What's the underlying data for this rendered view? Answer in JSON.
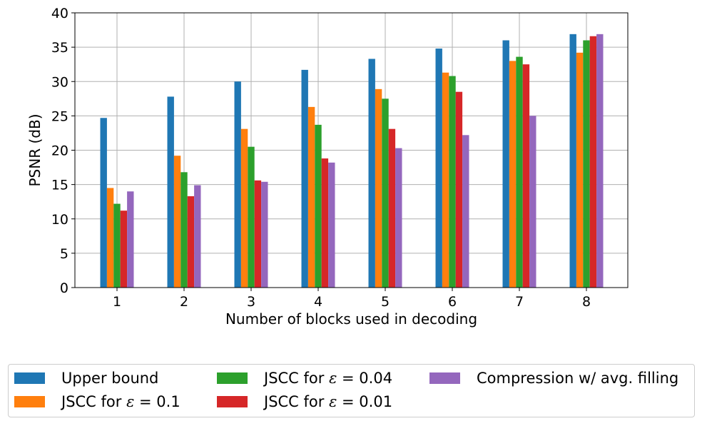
{
  "chart_data": {
    "type": "bar",
    "xlabel": "Number of blocks used in decoding",
    "ylabel": "PSNR (dB)",
    "ylim": [
      0,
      40
    ],
    "yticks": [
      0,
      5,
      10,
      15,
      20,
      25,
      30,
      35,
      40
    ],
    "categories": [
      "1",
      "2",
      "3",
      "4",
      "5",
      "6",
      "7",
      "8"
    ],
    "grid": true,
    "legend_position": "bottom",
    "series": [
      {
        "name": "Upper bound",
        "prefix": "Upper bound",
        "eps": "",
        "suffix": "",
        "color": "#1f77b4",
        "values": [
          24.7,
          27.8,
          30.0,
          31.7,
          33.3,
          34.8,
          36.0,
          36.9
        ]
      },
      {
        "name": "JSCC for ε = 0.1",
        "prefix": "JSCC for ",
        "eps": "ε",
        "suffix": " = 0.1",
        "color": "#ff7f0e",
        "values": [
          14.5,
          19.2,
          23.1,
          26.3,
          28.9,
          31.3,
          33.0,
          34.2
        ]
      },
      {
        "name": "JSCC for ε = 0.04",
        "prefix": "JSCC for ",
        "eps": "ε",
        "suffix": " = 0.04",
        "color": "#2ca02c",
        "values": [
          12.2,
          16.8,
          20.5,
          23.7,
          27.5,
          30.8,
          33.6,
          36.0
        ]
      },
      {
        "name": "JSCC for ε = 0.01",
        "prefix": "JSCC for ",
        "eps": "ε",
        "suffix": " = 0.01",
        "color": "#d62728",
        "values": [
          11.2,
          13.3,
          15.6,
          18.8,
          23.1,
          28.5,
          32.5,
          36.6
        ]
      },
      {
        "name": "Compression w/ avg. filling",
        "prefix": "Compression w/ avg. filling",
        "eps": "",
        "suffix": "",
        "color": "#9467bd",
        "values": [
          14.0,
          14.9,
          15.4,
          18.2,
          20.3,
          22.2,
          25.0,
          36.9
        ]
      }
    ]
  }
}
